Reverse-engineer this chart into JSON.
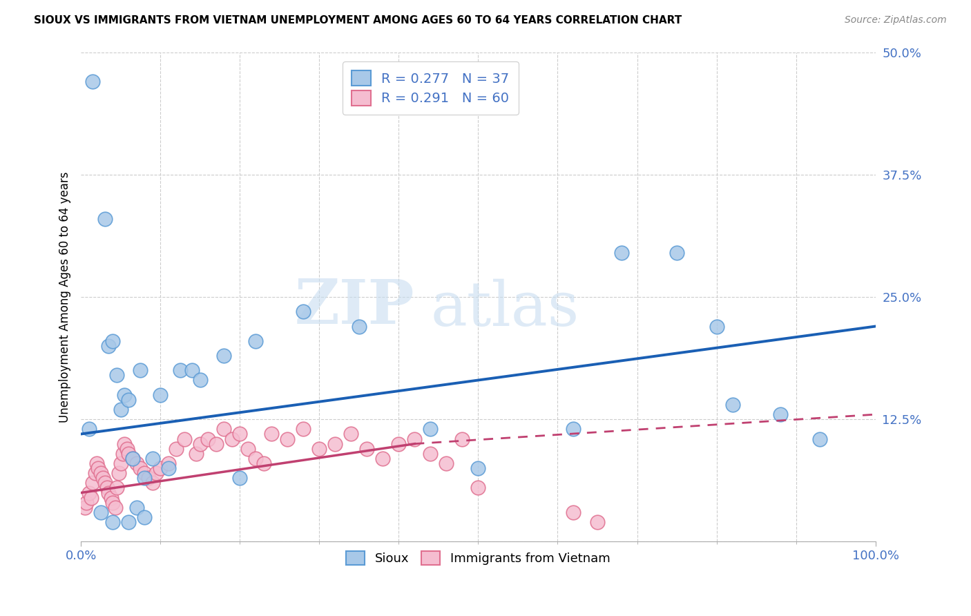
{
  "title": "SIOUX VS IMMIGRANTS FROM VIETNAM UNEMPLOYMENT AMONG AGES 60 TO 64 YEARS CORRELATION CHART",
  "source": "Source: ZipAtlas.com",
  "ylabel": "Unemployment Among Ages 60 to 64 years",
  "watermark_zip": "ZIP",
  "watermark_atlas": "atlas",
  "xlim": [
    0,
    100
  ],
  "ylim": [
    0,
    50
  ],
  "yticks": [
    0,
    12.5,
    25,
    37.5,
    50
  ],
  "yticklabels": [
    "",
    "12.5%",
    "25.0%",
    "37.5%",
    "50.0%"
  ],
  "xticklabels": [
    "0.0%",
    "100.0%"
  ],
  "sioux_color": "#a8c8e8",
  "sioux_edge_color": "#5b9bd5",
  "vietnam_color": "#f5bdd0",
  "vietnam_edge_color": "#e07090",
  "sioux_line_color": "#1a5fb4",
  "vietnam_line_color": "#c04070",
  "legend_color": "#4472c4",
  "grid_color": "#cccccc",
  "background_color": "#ffffff",
  "sioux_x": [
    1.5,
    3.0,
    3.5,
    4.0,
    4.5,
    5.0,
    5.5,
    6.0,
    6.5,
    7.5,
    8.0,
    9.0,
    10.0,
    11.0,
    12.5,
    14.0,
    15.0,
    18.0,
    22.0,
    28.0,
    35.0,
    44.0,
    50.0,
    62.0,
    68.0,
    75.0,
    80.0,
    82.0,
    88.0,
    93.0,
    2.5,
    4.0,
    7.0,
    8.0,
    1.0,
    6.0,
    20.0
  ],
  "sioux_y": [
    47.0,
    33.0,
    20.0,
    20.5,
    17.0,
    13.5,
    15.0,
    14.5,
    8.5,
    17.5,
    6.5,
    8.5,
    15.0,
    7.5,
    17.5,
    17.5,
    16.5,
    19.0,
    20.5,
    23.5,
    22.0,
    11.5,
    7.5,
    11.5,
    29.5,
    29.5,
    22.0,
    14.0,
    13.0,
    10.5,
    3.0,
    2.0,
    3.5,
    2.5,
    11.5,
    2.0,
    6.5
  ],
  "vietnam_x": [
    0.5,
    0.7,
    1.0,
    1.3,
    1.5,
    1.8,
    2.0,
    2.2,
    2.5,
    2.8,
    3.0,
    3.3,
    3.5,
    3.8,
    4.0,
    4.3,
    4.5,
    4.8,
    5.0,
    5.3,
    5.5,
    5.8,
    6.0,
    6.5,
    7.0,
    7.5,
    8.0,
    8.5,
    9.0,
    9.5,
    10.0,
    11.0,
    12.0,
    13.0,
    14.5,
    15.0,
    16.0,
    17.0,
    18.0,
    19.0,
    20.0,
    21.0,
    22.0,
    23.0,
    24.0,
    26.0,
    28.0,
    30.0,
    32.0,
    34.0,
    36.0,
    38.0,
    40.0,
    42.0,
    44.0,
    46.0,
    48.0,
    50.0,
    62.0,
    65.0
  ],
  "vietnam_y": [
    3.5,
    4.0,
    5.0,
    4.5,
    6.0,
    7.0,
    8.0,
    7.5,
    7.0,
    6.5,
    6.0,
    5.5,
    5.0,
    4.5,
    4.0,
    3.5,
    5.5,
    7.0,
    8.0,
    9.0,
    10.0,
    9.5,
    9.0,
    8.5,
    8.0,
    7.5,
    7.0,
    6.5,
    6.0,
    7.0,
    7.5,
    8.0,
    9.5,
    10.5,
    9.0,
    10.0,
    10.5,
    10.0,
    11.5,
    10.5,
    11.0,
    9.5,
    8.5,
    8.0,
    11.0,
    10.5,
    11.5,
    9.5,
    10.0,
    11.0,
    9.5,
    8.5,
    10.0,
    10.5,
    9.0,
    8.0,
    10.5,
    5.5,
    3.0,
    2.0
  ],
  "sioux_trend_x0": 0,
  "sioux_trend_x1": 100,
  "sioux_trend_y0": 11.0,
  "sioux_trend_y1": 22.0,
  "vietnam_solid_x0": 0,
  "vietnam_solid_x1": 42,
  "vietnam_solid_y0": 5.0,
  "vietnam_solid_y1": 10.0,
  "vietnam_dash_x0": 42,
  "vietnam_dash_x1": 100,
  "vietnam_dash_y0": 10.0,
  "vietnam_dash_y1": 13.0
}
